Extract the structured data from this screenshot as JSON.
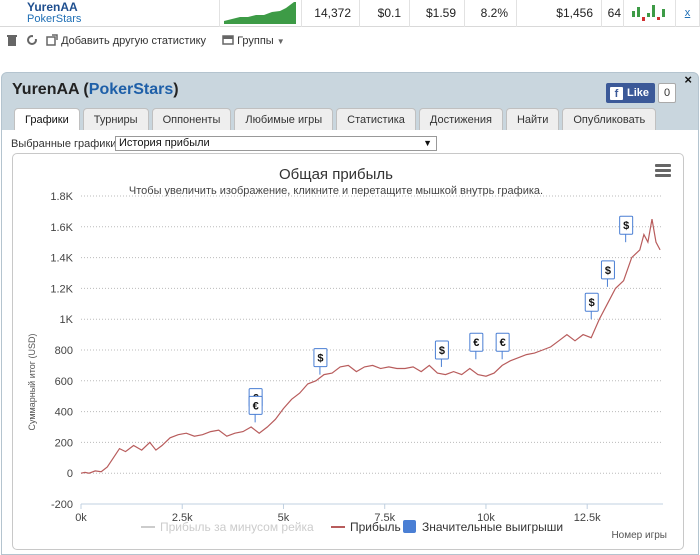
{
  "stats_row": {
    "player_name": "YurenAA",
    "site": "PokerStars",
    "values": [
      "14,372",
      "$0.1",
      "$1.59",
      "8.2%",
      "$1,456",
      "64"
    ],
    "remove_link": "x"
  },
  "toolbar": {
    "add_stats_label": "Добавить другую статистику",
    "groups_label": "Группы"
  },
  "panel": {
    "player_name": "YurenAA",
    "site": "PokerStars",
    "fb_like_label": "Like",
    "fb_like_count": "0",
    "close_label": "×"
  },
  "tabs": [
    {
      "label": "Графики",
      "active": true
    },
    {
      "label": "Турниры",
      "active": false
    },
    {
      "label": "Оппоненты",
      "active": false
    },
    {
      "label": "Любимые игры",
      "active": false
    },
    {
      "label": "Статистика",
      "active": false
    },
    {
      "label": "Достижения",
      "active": false
    },
    {
      "label": "Найти",
      "active": false
    },
    {
      "label": "Опубликовать",
      "active": false
    }
  ],
  "selector": {
    "label": "Выбранные графики:",
    "value": "История прибыли"
  },
  "colors": {
    "profit_line": "#b85c5c",
    "rake_line": "#cccccc",
    "big_wins": "#4a7fd4",
    "link": "#1e5fa8"
  },
  "chart_data": {
    "type": "line",
    "title": "Общая прибыль",
    "subtitle": "Чтобы увеличить изображение, кликните и перетащите мышкой внутрь графика.",
    "xlabel": "Номер игры",
    "ylabel": "Суммарный итог (USD)",
    "xlim": [
      0,
      14372
    ],
    "ylim": [
      -200,
      1800
    ],
    "x_ticks": [
      "0k",
      "2.5k",
      "5k",
      "7.5k",
      "10k",
      "12.5k"
    ],
    "y_ticks": [
      "-200",
      "0",
      "200",
      "400",
      "600",
      "800",
      "1K",
      "1.2K",
      "1.4K",
      "1.6K",
      "1.8K"
    ],
    "legend": [
      "Прибыль за минусом рейка",
      "Прибыль",
      "Значительные выигрыши"
    ],
    "legend_position": "bottom",
    "series": [
      {
        "name": "Прибыль",
        "x": [
          0,
          100,
          200,
          350,
          500,
          650,
          800,
          950,
          1100,
          1300,
          1500,
          1700,
          1850,
          2000,
          2200,
          2400,
          2600,
          2800,
          3000,
          3200,
          3400,
          3600,
          3800,
          4000,
          4200,
          4400,
          4600,
          4800,
          5000,
          5200,
          5400,
          5600,
          5800,
          6000,
          6200,
          6400,
          6600,
          6800,
          7000,
          7200,
          7400,
          7600,
          7800,
          8000,
          8200,
          8400,
          8600,
          8800,
          9000,
          9200,
          9400,
          9600,
          9800,
          10000,
          10200,
          10400,
          10600,
          10800,
          11000,
          11200,
          11400,
          11600,
          11800,
          12000,
          12200,
          12400,
          12600,
          12800,
          13000,
          13200,
          13400,
          13600,
          13800,
          13900,
          14000,
          14100,
          14200,
          14300
        ],
        "values": [
          0,
          5,
          0,
          15,
          10,
          40,
          100,
          160,
          140,
          180,
          150,
          200,
          150,
          180,
          230,
          250,
          260,
          240,
          250,
          270,
          280,
          240,
          260,
          270,
          300,
          260,
          300,
          350,
          420,
          480,
          520,
          580,
          600,
          640,
          650,
          690,
          700,
          660,
          690,
          700,
          680,
          690,
          680,
          680,
          690,
          660,
          700,
          650,
          640,
          660,
          640,
          680,
          640,
          630,
          650,
          700,
          730,
          750,
          770,
          780,
          800,
          820,
          860,
          900,
          860,
          900,
          880,
          1000,
          1100,
          1200,
          1250,
          1400,
          1450,
          1550,
          1500,
          1650,
          1500,
          1450
        ]
      },
      {
        "name": "Значительные выигрыши",
        "x": [
          4300,
          4300,
          5900,
          8900,
          9750,
          10400,
          12600,
          13000,
          13450
        ],
        "labels": [
          "€",
          "€",
          "$",
          "$",
          "€",
          "€",
          "$",
          "$",
          "$"
        ],
        "values": [
          380,
          330,
          640,
          690,
          740,
          740,
          1000,
          1210,
          1500
        ]
      }
    ]
  }
}
